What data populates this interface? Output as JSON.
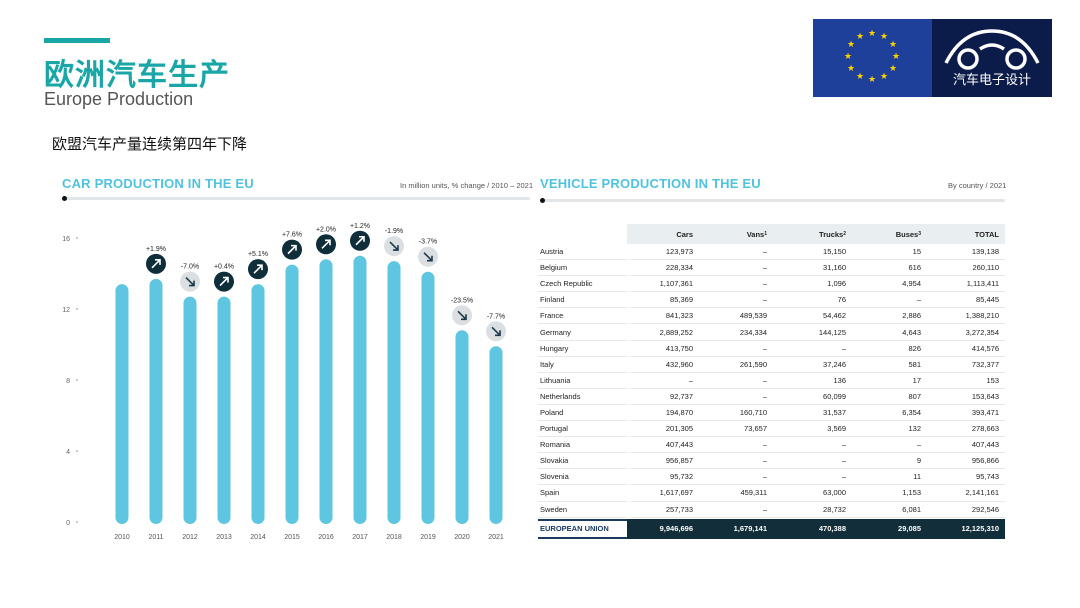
{
  "header": {
    "title_cn": "欧洲汽车生产",
    "title_en": "Europe Production",
    "subtitle": "欧盟汽车产量连续第四年下降"
  },
  "logo": {
    "brand_text": "汽车电子设计"
  },
  "colors": {
    "accent": "#1aa6a6",
    "bar": "#5ec6e0",
    "panel_title": "#4fc3de",
    "up_badge": "#0f2e3a",
    "down_badge": "#dcdfe2"
  },
  "left_panel": {
    "title": "CAR PRODUCTION IN THE EU",
    "meta": "In million units, % change / 2010 – 2021"
  },
  "right_panel": {
    "title": "VEHICLE PRODUCTION IN THE EU",
    "meta": "By country / 2021"
  },
  "chart_data": {
    "type": "bar",
    "title": "CAR PRODUCTION IN THE EU",
    "categories": [
      "2010",
      "2011",
      "2012",
      "2013",
      "2014",
      "2015",
      "2016",
      "2017",
      "2018",
      "2019",
      "2020",
      "2021"
    ],
    "values": [
      13.4,
      13.7,
      12.7,
      12.7,
      13.4,
      14.5,
      14.8,
      15.0,
      14.7,
      14.1,
      10.8,
      9.9
    ],
    "changes": [
      "",
      "+1.9%",
      "-7.0%",
      "+0.4%",
      "+5.1%",
      "+7.6%",
      "+2.0%",
      "+1.2%",
      "-1.9%",
      "-3.7%",
      "-23.5%",
      "-7.7%"
    ],
    "directions": [
      "",
      "up",
      "down",
      "up",
      "up",
      "up",
      "up",
      "up",
      "down",
      "down",
      "down",
      "down"
    ],
    "yticks": [
      "0",
      "4",
      "8",
      "12",
      "16"
    ],
    "ylim": [
      0,
      16
    ],
    "grid": false,
    "legend": "none"
  },
  "table": {
    "headers": [
      "Cars",
      "Vans",
      "Trucks",
      "Buses",
      "TOTAL"
    ],
    "header_sups": [
      "",
      "1",
      "2",
      "3",
      ""
    ],
    "rows": [
      [
        "Austria",
        "123,973",
        "–",
        "15,150",
        "15",
        "139,138"
      ],
      [
        "Belgium",
        "228,334",
        "–",
        "31,160",
        "616",
        "260,110"
      ],
      [
        "Czech Republic",
        "1,107,361",
        "–",
        "1,096",
        "4,954",
        "1,113,411"
      ],
      [
        "Finland",
        "85,369",
        "–",
        "76",
        "–",
        "85,445"
      ],
      [
        "France",
        "841,323",
        "489,539",
        "54,462",
        "2,886",
        "1,388,210"
      ],
      [
        "Germany",
        "2,889,252",
        "234,334",
        "144,125",
        "4,643",
        "3,272,354"
      ],
      [
        "Hungary",
        "413,750",
        "–",
        "–",
        "826",
        "414,576"
      ],
      [
        "Italy",
        "432,960",
        "261,590",
        "37,246",
        "581",
        "732,377"
      ],
      [
        "Lithuania",
        "–",
        "–",
        "136",
        "17",
        "153"
      ],
      [
        "Netherlands",
        "92,737",
        "–",
        "60,099",
        "807",
        "153,643"
      ],
      [
        "Poland",
        "194,870",
        "160,710",
        "31,537",
        "6,354",
        "393,471"
      ],
      [
        "Portugal",
        "201,305",
        "73,657",
        "3,569",
        "132",
        "278,663"
      ],
      [
        "Romania",
        "407,443",
        "–",
        "–",
        "–",
        "407,443"
      ],
      [
        "Slovakia",
        "956,857",
        "–",
        "–",
        "9",
        "956,866"
      ],
      [
        "Slovenia",
        "95,732",
        "–",
        "–",
        "11",
        "95,743"
      ],
      [
        "Spain",
        "1,617,697",
        "459,311",
        "63,000",
        "1,153",
        "2,141,161"
      ],
      [
        "Sweden",
        "257,733",
        "–",
        "28,732",
        "6,081",
        "292,546"
      ]
    ],
    "total": [
      "EUROPEAN UNION",
      "9,946,696",
      "1,679,141",
      "470,388",
      "29,085",
      "12,125,310"
    ]
  }
}
